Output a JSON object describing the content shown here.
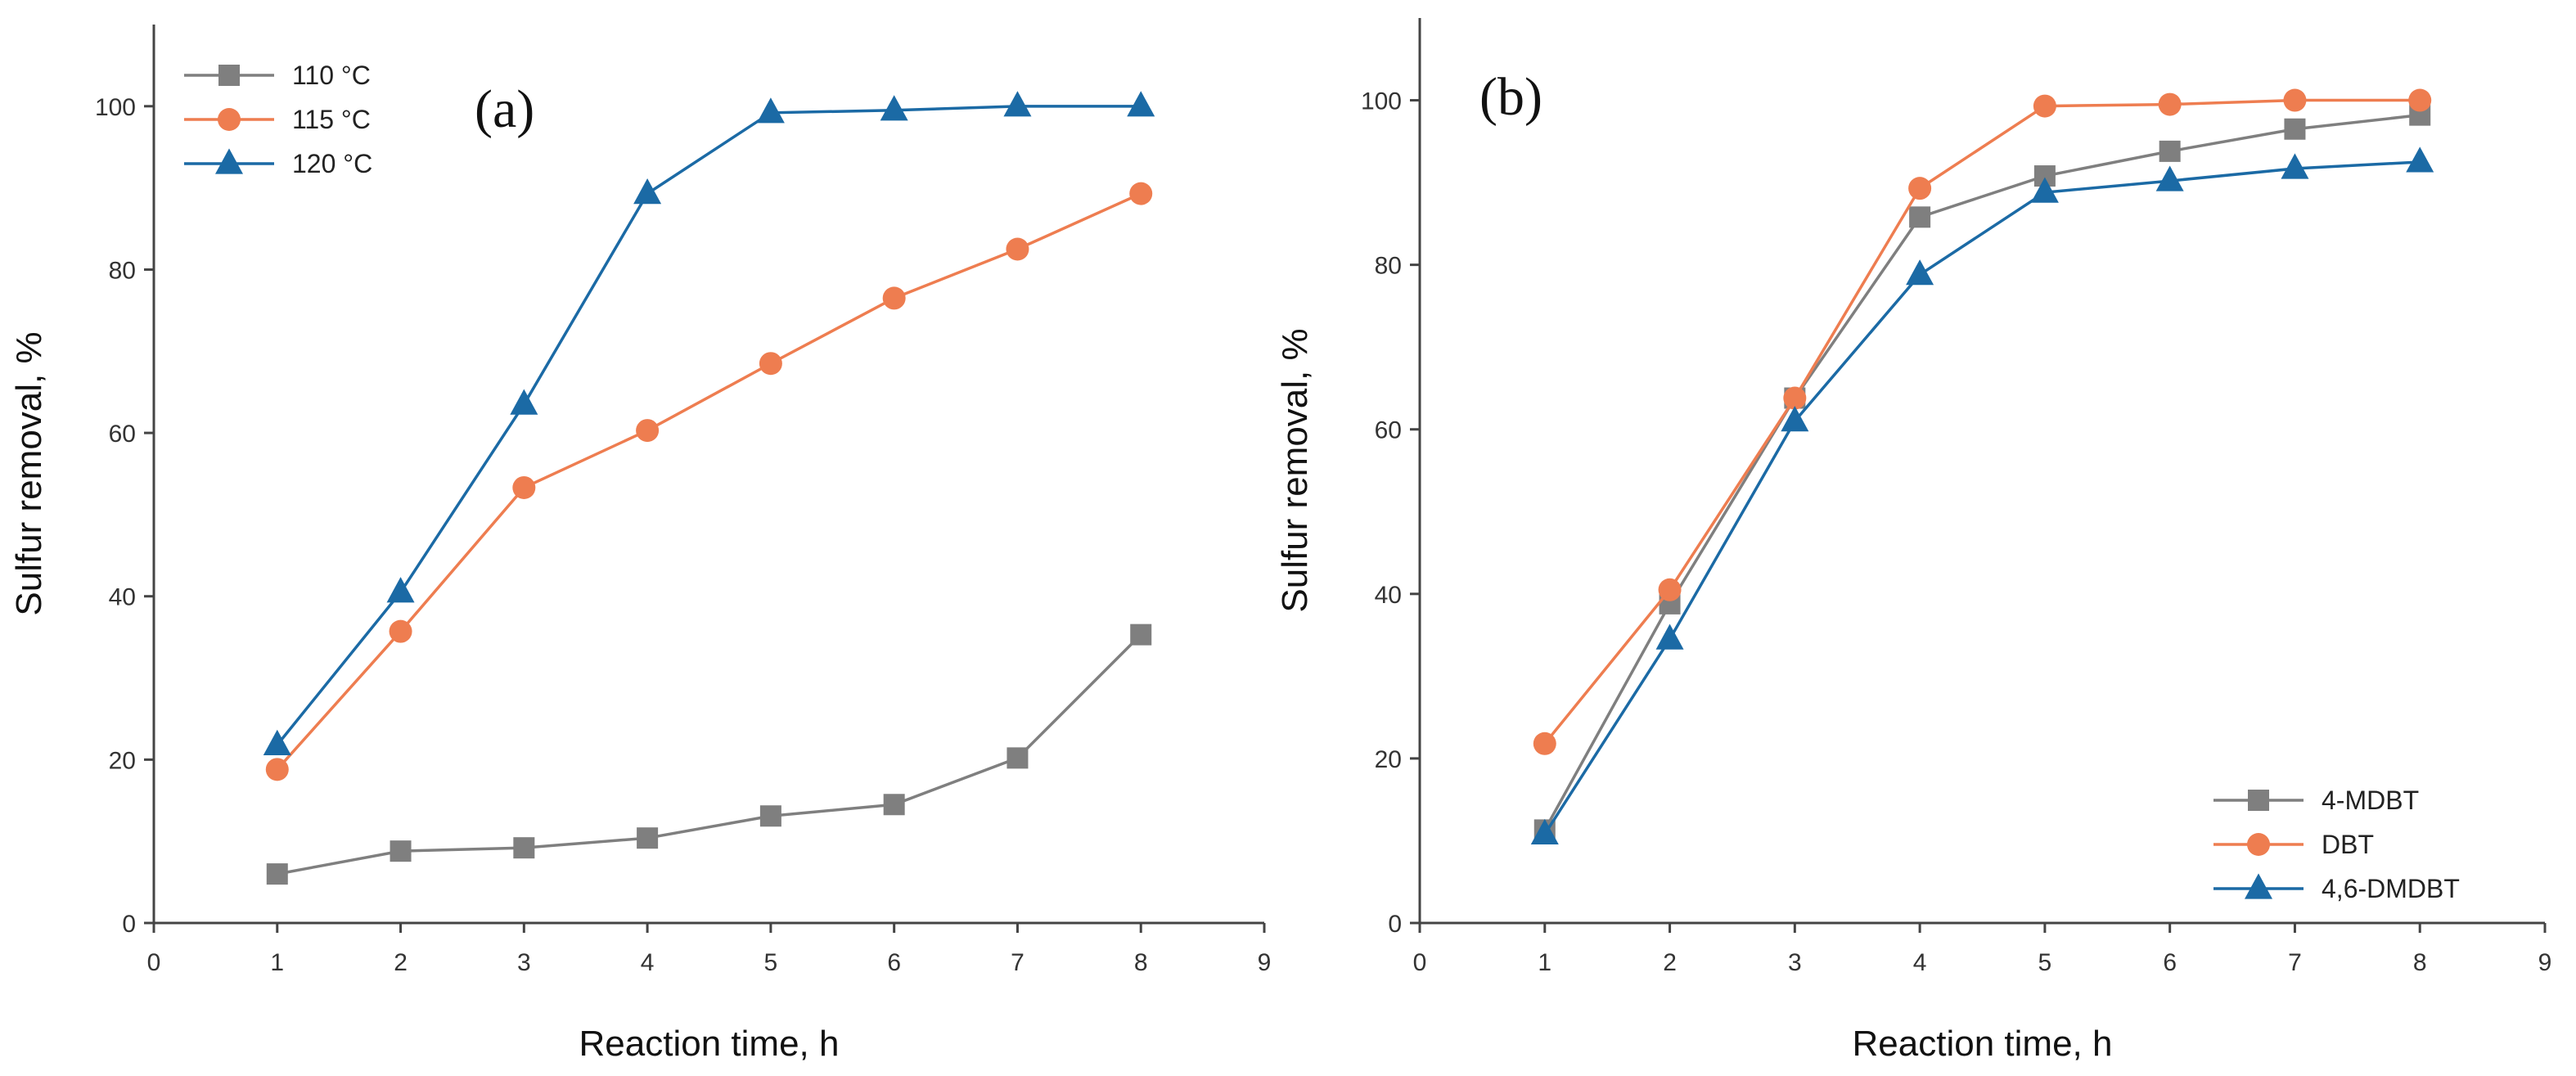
{
  "colors": {
    "gray": "#7f7f7f",
    "orange": "#ee7d50",
    "blue": "#1b6aa5",
    "axis": "#444444"
  },
  "chart_data": [
    {
      "type": "line",
      "panel_label": "(a)",
      "xlabel": "Reaction time, h",
      "ylabel": "Sulfur removal, %",
      "xlim": [
        0,
        9
      ],
      "ylim": [
        0,
        110
      ],
      "xticks": [
        0,
        1,
        2,
        3,
        4,
        5,
        6,
        7,
        8,
        9
      ],
      "yticks": [
        0,
        20,
        40,
        60,
        80,
        100
      ],
      "legend_position": "top-left",
      "x": [
        1,
        2,
        3,
        4,
        5,
        6,
        7,
        8
      ],
      "series": [
        {
          "name": "110 °C",
          "color": "#7f7f7f",
          "marker": "square",
          "values": [
            6,
            8.8,
            9.2,
            10.4,
            13.1,
            14.5,
            20.2,
            35.3
          ]
        },
        {
          "name": "115 °C",
          "color": "#ee7d50",
          "marker": "circle",
          "values": [
            18.8,
            35.7,
            53.3,
            60.3,
            68.5,
            76.5,
            82.5,
            89.3
          ]
        },
        {
          "name": "120 °C",
          "color": "#1b6aa5",
          "marker": "triangle",
          "values": [
            21.8,
            40.5,
            63.5,
            89.3,
            99.2,
            99.5,
            100,
            100
          ]
        }
      ]
    },
    {
      "type": "line",
      "panel_label": "(b)",
      "xlabel": "Reaction time, h",
      "ylabel": "Sulfur removal, %",
      "xlim": [
        0,
        9
      ],
      "ylim": [
        0,
        110
      ],
      "xticks": [
        0,
        1,
        2,
        3,
        4,
        5,
        6,
        7,
        8,
        9
      ],
      "yticks": [
        0,
        20,
        40,
        60,
        80,
        100
      ],
      "legend_position": "bottom-right",
      "x": [
        1,
        2,
        3,
        4,
        5,
        6,
        7,
        8
      ],
      "series": [
        {
          "name": "4-MDBT",
          "color": "#7f7f7f",
          "marker": "square",
          "values": [
            11.3,
            38.8,
            63.8,
            85.8,
            90.8,
            93.8,
            96.5,
            98.2
          ]
        },
        {
          "name": "DBT",
          "color": "#ee7d50",
          "marker": "circle",
          "values": [
            21.8,
            40.5,
            63.8,
            89.3,
            99.3,
            99.5,
            100,
            100
          ]
        },
        {
          "name": "4,6-DMDBT",
          "color": "#1b6aa5",
          "marker": "triangle",
          "values": [
            10.8,
            34.5,
            61.0,
            78.8,
            88.8,
            90.2,
            91.7,
            92.5
          ]
        }
      ]
    }
  ]
}
